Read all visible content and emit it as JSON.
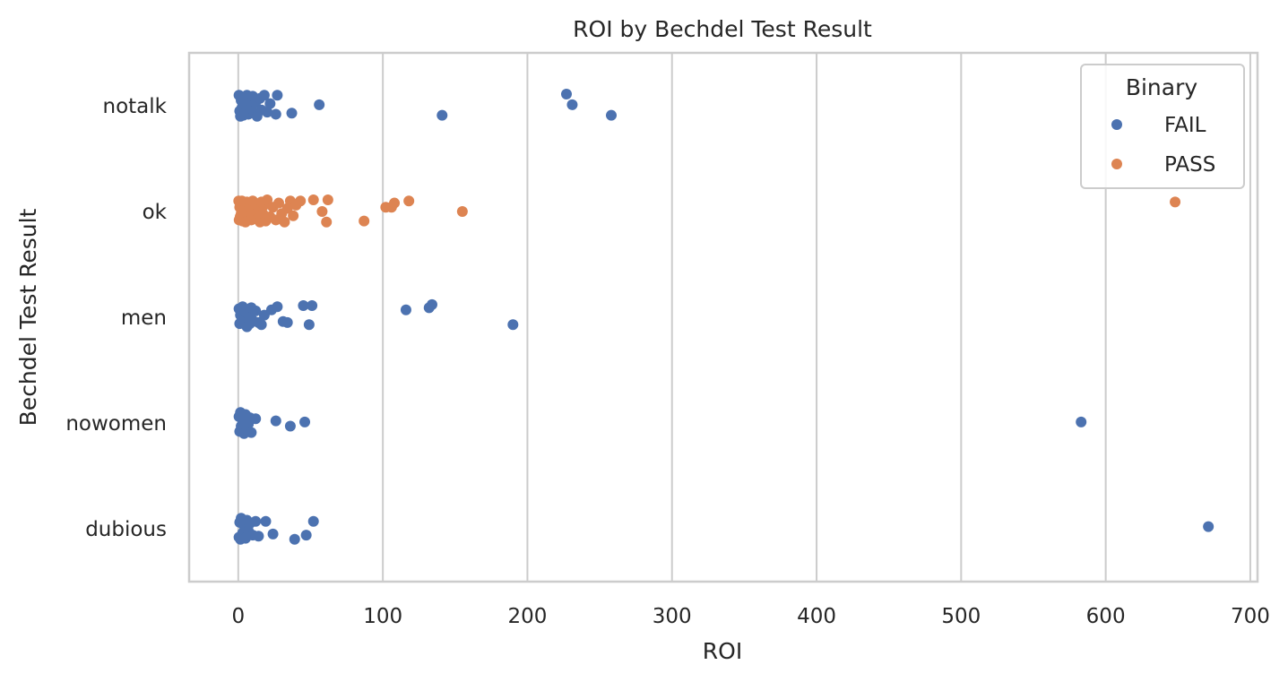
{
  "chart_data": {
    "type": "scatter",
    "title": "ROI by Bechdel Test Result",
    "xlabel": "ROI",
    "ylabel": "Bechdel Test Result",
    "xlim": [
      -34,
      705
    ],
    "xticks": [
      0,
      100,
      200,
      300,
      400,
      500,
      600,
      700
    ],
    "xtick_labels": [
      "0",
      "100",
      "200",
      "300",
      "400",
      "500",
      "600",
      "700"
    ],
    "categories": [
      "notalk",
      "ok",
      "men",
      "nowomen",
      "dubious"
    ],
    "grid": true,
    "legend": {
      "title": "Binary",
      "placement": "top-right",
      "entries": [
        "FAIL",
        "PASS"
      ]
    },
    "colors": {
      "FAIL": "#4c72b0",
      "PASS": "#dd8452",
      "grid": "#cccccc",
      "spine": "#cccccc",
      "text": "#262626"
    },
    "series": [
      {
        "name": "FAIL",
        "points": [
          {
            "cat": "notalk",
            "x": 0.5,
            "j": -0.1
          },
          {
            "cat": "notalk",
            "x": 1,
            "j": 0.05
          },
          {
            "cat": "notalk",
            "x": 1.5,
            "j": 0.1
          },
          {
            "cat": "notalk",
            "x": 2,
            "j": -0.05
          },
          {
            "cat": "notalk",
            "x": 2.5,
            "j": 0.02
          },
          {
            "cat": "notalk",
            "x": 3,
            "j": -0.08
          },
          {
            "cat": "notalk",
            "x": 3.5,
            "j": 0.09
          },
          {
            "cat": "notalk",
            "x": 4,
            "j": -0.02
          },
          {
            "cat": "notalk",
            "x": 5,
            "j": 0.06
          },
          {
            "cat": "notalk",
            "x": 6,
            "j": -0.1
          },
          {
            "cat": "notalk",
            "x": 7,
            "j": 0.08
          },
          {
            "cat": "notalk",
            "x": 8,
            "j": -0.04
          },
          {
            "cat": "notalk",
            "x": 9,
            "j": 0.03
          },
          {
            "cat": "notalk",
            "x": 10,
            "j": -0.09
          },
          {
            "cat": "notalk",
            "x": 11,
            "j": 0.07
          },
          {
            "cat": "notalk",
            "x": 12,
            "j": -0.03
          },
          {
            "cat": "notalk",
            "x": 13,
            "j": 0.1
          },
          {
            "cat": "notalk",
            "x": 15,
            "j": -0.07
          },
          {
            "cat": "notalk",
            "x": 16,
            "j": 0.04
          },
          {
            "cat": "notalk",
            "x": 18,
            "j": -0.1
          },
          {
            "cat": "notalk",
            "x": 20,
            "j": 0.06
          },
          {
            "cat": "notalk",
            "x": 22,
            "j": -0.02
          },
          {
            "cat": "notalk",
            "x": 26,
            "j": 0.08
          },
          {
            "cat": "notalk",
            "x": 27,
            "j": -0.1
          },
          {
            "cat": "notalk",
            "x": 37,
            "j": 0.07
          },
          {
            "cat": "notalk",
            "x": 56,
            "j": -0.01
          },
          {
            "cat": "notalk",
            "x": 141,
            "j": 0.09
          },
          {
            "cat": "notalk",
            "x": 227,
            "j": -0.11
          },
          {
            "cat": "notalk",
            "x": 231,
            "j": -0.01
          },
          {
            "cat": "notalk",
            "x": 258,
            "j": 0.09
          },
          {
            "cat": "men",
            "x": 0.5,
            "j": -0.08
          },
          {
            "cat": "men",
            "x": 1,
            "j": 0.06
          },
          {
            "cat": "men",
            "x": 1.5,
            "j": -0.02
          },
          {
            "cat": "men",
            "x": 2,
            "j": 0.05
          },
          {
            "cat": "men",
            "x": 3,
            "j": -0.1
          },
          {
            "cat": "men",
            "x": 4,
            "j": 0.02
          },
          {
            "cat": "men",
            "x": 5,
            "j": -0.05
          },
          {
            "cat": "men",
            "x": 6,
            "j": 0.09
          },
          {
            "cat": "men",
            "x": 7,
            "j": -0.03
          },
          {
            "cat": "men",
            "x": 8,
            "j": 0.06
          },
          {
            "cat": "men",
            "x": 9,
            "j": -0.09
          },
          {
            "cat": "men",
            "x": 10,
            "j": 0.03
          },
          {
            "cat": "men",
            "x": 12,
            "j": -0.06
          },
          {
            "cat": "men",
            "x": 14,
            "j": 0.05
          },
          {
            "cat": "men",
            "x": 16,
            "j": 0.07
          },
          {
            "cat": "men",
            "x": 18,
            "j": -0.02
          },
          {
            "cat": "men",
            "x": 23,
            "j": -0.07
          },
          {
            "cat": "men",
            "x": 27,
            "j": -0.1
          },
          {
            "cat": "men",
            "x": 31,
            "j": 0.04
          },
          {
            "cat": "men",
            "x": 34,
            "j": 0.05
          },
          {
            "cat": "men",
            "x": 45,
            "j": -0.11
          },
          {
            "cat": "men",
            "x": 49,
            "j": 0.07
          },
          {
            "cat": "men",
            "x": 51,
            "j": -0.11
          },
          {
            "cat": "men",
            "x": 116,
            "j": -0.07
          },
          {
            "cat": "men",
            "x": 132,
            "j": -0.09
          },
          {
            "cat": "men",
            "x": 134,
            "j": -0.12
          },
          {
            "cat": "men",
            "x": 190,
            "j": 0.07
          },
          {
            "cat": "nowomen",
            "x": 0.5,
            "j": -0.06
          },
          {
            "cat": "nowomen",
            "x": 1,
            "j": 0.08
          },
          {
            "cat": "nowomen",
            "x": 1.5,
            "j": -0.1
          },
          {
            "cat": "nowomen",
            "x": 2,
            "j": 0.03
          },
          {
            "cat": "nowomen",
            "x": 3,
            "j": -0.03
          },
          {
            "cat": "nowomen",
            "x": 4,
            "j": 0.1
          },
          {
            "cat": "nowomen",
            "x": 5,
            "j": -0.08
          },
          {
            "cat": "nowomen",
            "x": 6,
            "j": 0.06
          },
          {
            "cat": "nowomen",
            "x": 7,
            "j": 0.01
          },
          {
            "cat": "nowomen",
            "x": 8,
            "j": -0.05
          },
          {
            "cat": "nowomen",
            "x": 9,
            "j": 0.09
          },
          {
            "cat": "nowomen",
            "x": 12,
            "j": -0.04
          },
          {
            "cat": "nowomen",
            "x": 26,
            "j": -0.02
          },
          {
            "cat": "nowomen",
            "x": 36,
            "j": 0.03
          },
          {
            "cat": "nowomen",
            "x": 46,
            "j": -0.01
          },
          {
            "cat": "nowomen",
            "x": 583,
            "j": -0.01
          },
          {
            "cat": "dubious",
            "x": 0.5,
            "j": 0.08
          },
          {
            "cat": "dubious",
            "x": 1,
            "j": -0.06
          },
          {
            "cat": "dubious",
            "x": 1.5,
            "j": 0.1
          },
          {
            "cat": "dubious",
            "x": 2,
            "j": -0.1
          },
          {
            "cat": "dubious",
            "x": 3,
            "j": 0.04
          },
          {
            "cat": "dubious",
            "x": 4,
            "j": -0.03
          },
          {
            "cat": "dubious",
            "x": 5,
            "j": 0.09
          },
          {
            "cat": "dubious",
            "x": 6,
            "j": -0.08
          },
          {
            "cat": "dubious",
            "x": 7,
            "j": 0.02
          },
          {
            "cat": "dubious",
            "x": 8,
            "j": -0.05
          },
          {
            "cat": "dubious",
            "x": 10,
            "j": 0.06
          },
          {
            "cat": "dubious",
            "x": 12,
            "j": -0.07
          },
          {
            "cat": "dubious",
            "x": 14,
            "j": 0.07
          },
          {
            "cat": "dubious",
            "x": 19,
            "j": -0.07
          },
          {
            "cat": "dubious",
            "x": 24,
            "j": 0.05
          },
          {
            "cat": "dubious",
            "x": 39,
            "j": 0.1
          },
          {
            "cat": "dubious",
            "x": 47,
            "j": 0.06
          },
          {
            "cat": "dubious",
            "x": 52,
            "j": -0.07
          },
          {
            "cat": "dubious",
            "x": 671,
            "j": -0.02
          }
        ]
      },
      {
        "name": "PASS",
        "points": [
          {
            "cat": "ok",
            "x": 0.3,
            "j": -0.1
          },
          {
            "cat": "ok",
            "x": 0.6,
            "j": 0.08
          },
          {
            "cat": "ok",
            "x": 1,
            "j": -0.04
          },
          {
            "cat": "ok",
            "x": 1.3,
            "j": 0.05
          },
          {
            "cat": "ok",
            "x": 1.6,
            "j": -0.08
          },
          {
            "cat": "ok",
            "x": 2,
            "j": 0.02
          },
          {
            "cat": "ok",
            "x": 2.5,
            "j": -0.1
          },
          {
            "cat": "ok",
            "x": 3,
            "j": 0.09
          },
          {
            "cat": "ok",
            "x": 3.5,
            "j": -0.06
          },
          {
            "cat": "ok",
            "x": 4,
            "j": 0.06
          },
          {
            "cat": "ok",
            "x": 4.5,
            "j": -0.02
          },
          {
            "cat": "ok",
            "x": 5,
            "j": 0.1
          },
          {
            "cat": "ok",
            "x": 6,
            "j": -0.09
          },
          {
            "cat": "ok",
            "x": 7,
            "j": 0.04
          },
          {
            "cat": "ok",
            "x": 8,
            "j": -0.05
          },
          {
            "cat": "ok",
            "x": 9,
            "j": 0.08
          },
          {
            "cat": "ok",
            "x": 10,
            "j": -0.1
          },
          {
            "cat": "ok",
            "x": 11,
            "j": 0.03
          },
          {
            "cat": "ok",
            "x": 12,
            "j": -0.07
          },
          {
            "cat": "ok",
            "x": 13,
            "j": 0.07
          },
          {
            "cat": "ok",
            "x": 14,
            "j": -0.03
          },
          {
            "cat": "ok",
            "x": 15,
            "j": 0.1
          },
          {
            "cat": "ok",
            "x": 16,
            "j": -0.09
          },
          {
            "cat": "ok",
            "x": 17,
            "j": 0.02
          },
          {
            "cat": "ok",
            "x": 18,
            "j": -0.06
          },
          {
            "cat": "ok",
            "x": 19,
            "j": 0.09
          },
          {
            "cat": "ok",
            "x": 20,
            "j": -0.11
          },
          {
            "cat": "ok",
            "x": 22,
            "j": 0.05
          },
          {
            "cat": "ok",
            "x": 24,
            "j": -0.04
          },
          {
            "cat": "ok",
            "x": 26,
            "j": 0.08
          },
          {
            "cat": "ok",
            "x": 28,
            "j": -0.08
          },
          {
            "cat": "ok",
            "x": 30,
            "j": 0.02
          },
          {
            "cat": "ok",
            "x": 32,
            "j": 0.1
          },
          {
            "cat": "ok",
            "x": 34,
            "j": -0.03
          },
          {
            "cat": "ok",
            "x": 36,
            "j": -0.1
          },
          {
            "cat": "ok",
            "x": 38,
            "j": 0.04
          },
          {
            "cat": "ok",
            "x": 40,
            "j": -0.06
          },
          {
            "cat": "ok",
            "x": 43,
            "j": -0.1
          },
          {
            "cat": "ok",
            "x": 52,
            "j": -0.11
          },
          {
            "cat": "ok",
            "x": 58,
            "j": 0.0
          },
          {
            "cat": "ok",
            "x": 61,
            "j": 0.1
          },
          {
            "cat": "ok",
            "x": 62,
            "j": -0.11
          },
          {
            "cat": "ok",
            "x": 87,
            "j": 0.09
          },
          {
            "cat": "ok",
            "x": 102,
            "j": -0.04
          },
          {
            "cat": "ok",
            "x": 106,
            "j": -0.04
          },
          {
            "cat": "ok",
            "x": 108,
            "j": -0.08
          },
          {
            "cat": "ok",
            "x": 118,
            "j": -0.1
          },
          {
            "cat": "ok",
            "x": 155,
            "j": 0.0
          },
          {
            "cat": "ok",
            "x": 648,
            "j": -0.09
          }
        ]
      }
    ]
  }
}
